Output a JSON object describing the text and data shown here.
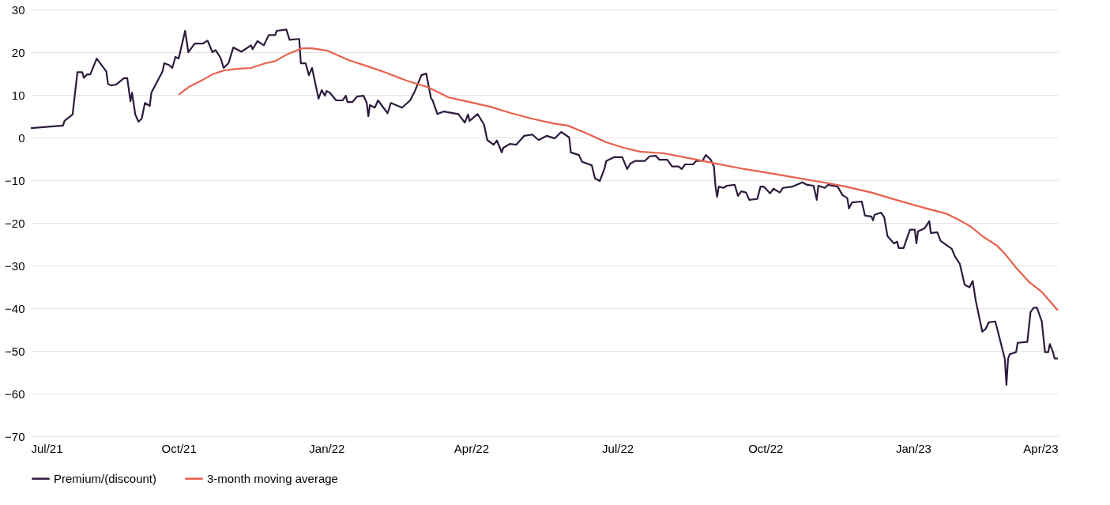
{
  "chart_data": {
    "type": "line",
    "legend": "bottom",
    "grid": "y",
    "line_style": "solid",
    "marker": "none",
    "xlim": [
      "2021-07-01",
      "2023-04-01"
    ],
    "xticks": [
      {
        "value": "2021-07-01",
        "label": "Jul/21"
      },
      {
        "value": "2021-10-01",
        "label": "Oct/21"
      },
      {
        "value": "2022-01-01",
        "label": "Jan/22"
      },
      {
        "value": "2022-04-01",
        "label": "Apr/22"
      },
      {
        "value": "2022-07-01",
        "label": "Jul/22"
      },
      {
        "value": "2022-10-01",
        "label": "Oct/22"
      },
      {
        "value": "2023-01-01",
        "label": "Jan/23"
      },
      {
        "value": "2023-04-01",
        "label": "Apr/23"
      }
    ],
    "ylim": [
      -70,
      30
    ],
    "yticks": [
      -70,
      -60,
      -50,
      -40,
      -30,
      -20,
      -10,
      0,
      10,
      20,
      30
    ],
    "series": [
      {
        "name": "Premium/(discount)",
        "color": "#2d1b3d",
        "x": [
          "2021-07-01",
          "2021-07-21",
          "2021-07-22",
          "2021-07-27",
          "2021-07-30",
          "2021-08-02",
          "2021-08-03",
          "2021-08-05",
          "2021-08-07",
          "2021-08-11",
          "2021-08-17",
          "2021-08-18",
          "2021-08-20",
          "2021-08-23",
          "2021-08-28",
          "2021-08-30",
          "2021-09-01",
          "2021-09-02",
          "2021-09-04",
          "2021-09-06",
          "2021-09-08",
          "2021-09-10",
          "2021-09-13",
          "2021-09-14",
          "2021-09-21",
          "2021-09-22",
          "2021-09-25",
          "2021-09-27",
          "2021-09-29",
          "2021-10-01",
          "2021-10-05",
          "2021-10-07",
          "2021-10-11",
          "2021-10-16",
          "2021-10-19",
          "2021-10-22",
          "2021-10-24",
          "2021-10-27",
          "2021-10-29",
          "2021-11-01",
          "2021-11-04",
          "2021-11-09",
          "2021-11-15",
          "2021-11-16",
          "2021-11-19",
          "2021-11-23",
          "2021-11-26",
          "2021-11-30",
          "2021-12-01",
          "2021-12-07",
          "2021-12-09",
          "2021-12-15",
          "2021-12-16",
          "2021-12-19",
          "2021-12-21",
          "2021-12-23",
          "2021-12-27",
          "2021-12-29",
          "2021-12-31",
          "2022-01-01",
          "2022-01-03",
          "2022-01-07",
          "2022-01-11",
          "2022-01-13",
          "2022-01-14",
          "2022-01-17",
          "2022-01-20",
          "2022-01-24",
          "2022-01-26",
          "2022-01-27",
          "2022-01-28",
          "2022-01-31",
          "2022-02-02",
          "2022-02-08",
          "2022-02-10",
          "2022-02-17",
          "2022-02-22",
          "2022-02-25",
          "2022-03-01",
          "2022-03-04",
          "2022-03-07",
          "2022-03-08",
          "2022-03-11",
          "2022-03-15",
          "2022-03-24",
          "2022-03-28",
          "2022-03-30",
          "2022-03-31",
          "2022-04-05",
          "2022-04-09",
          "2022-04-11",
          "2022-04-15",
          "2022-04-17",
          "2022-04-20",
          "2022-04-21",
          "2022-04-25",
          "2022-04-29",
          "2022-05-04",
          "2022-05-09",
          "2022-05-13",
          "2022-05-18",
          "2022-05-23",
          "2022-05-27",
          "2022-06-01",
          "2022-06-02",
          "2022-06-07",
          "2022-06-09",
          "2022-06-15",
          "2022-06-17",
          "2022-06-20",
          "2022-06-23",
          "2022-06-24",
          "2022-06-29",
          "2022-07-04",
          "2022-07-07",
          "2022-07-09",
          "2022-07-12",
          "2022-07-18",
          "2022-07-21",
          "2022-07-25",
          "2022-07-27",
          "2022-08-01",
          "2022-08-04",
          "2022-08-08",
          "2022-08-10",
          "2022-08-12",
          "2022-08-17",
          "2022-08-19",
          "2022-08-23",
          "2022-08-25",
          "2022-08-28",
          "2022-08-30",
          "2022-08-31",
          "2022-09-01",
          "2022-09-02",
          "2022-09-05",
          "2022-09-07",
          "2022-09-12",
          "2022-09-14",
          "2022-09-16",
          "2022-09-19",
          "2022-09-21",
          "2022-09-26",
          "2022-09-28",
          "2022-09-30",
          "2022-10-04",
          "2022-10-06",
          "2022-10-10",
          "2022-10-12",
          "2022-10-18",
          "2022-10-24",
          "2022-10-27",
          "2022-10-31",
          "2022-11-02",
          "2022-11-03",
          "2022-11-07",
          "2022-11-09",
          "2022-11-15",
          "2022-11-18",
          "2022-11-21",
          "2022-11-22",
          "2022-11-24",
          "2022-11-30",
          "2022-12-02",
          "2022-12-06",
          "2022-12-07",
          "2022-12-08",
          "2022-12-12",
          "2022-12-14",
          "2022-12-16",
          "2022-12-20",
          "2022-12-22",
          "2022-12-23",
          "2022-12-26",
          "2022-12-30",
          "2023-01-02",
          "2023-01-03",
          "2023-01-04",
          "2023-01-08",
          "2023-01-11",
          "2023-01-12",
          "2023-01-16",
          "2023-01-18",
          "2023-01-25",
          "2023-01-27",
          "2023-01-30",
          "2023-02-02",
          "2023-02-05",
          "2023-02-07",
          "2023-02-09",
          "2023-02-13",
          "2023-02-15",
          "2023-02-17",
          "2023-02-21",
          "2023-02-22",
          "2023-02-27",
          "2023-02-28",
          "2023-03-01",
          "2023-03-02",
          "2023-03-06",
          "2023-03-07",
          "2023-03-13",
          "2023-03-15",
          "2023-03-17",
          "2023-03-19",
          "2023-03-22",
          "2023-03-24",
          "2023-03-26",
          "2023-03-27",
          "2023-03-29",
          "2023-03-30",
          "2023-04-01"
        ],
        "values": [
          2.2,
          2.8,
          3.9,
          5.4,
          15.3,
          15.3,
          14.0,
          14.8,
          14.8,
          18.5,
          15.5,
          12.6,
          12.2,
          12.4,
          13.9,
          13.9,
          8.5,
          10.5,
          5.4,
          3.7,
          4.4,
          8.1,
          7.4,
          10.5,
          15.5,
          17.4,
          17.0,
          16.3,
          18.9,
          18.5,
          25.0,
          20.0,
          22.0,
          22.0,
          22.7,
          20.0,
          20.5,
          18.7,
          16.3,
          17.4,
          21.1,
          20.1,
          21.6,
          20.7,
          22.6,
          21.6,
          24.0,
          24.0,
          25.0,
          25.3,
          22.9,
          23.1,
          17.4,
          17.4,
          14.6,
          16.3,
          9.1,
          11.1,
          9.8,
          10.9,
          10.5,
          8.7,
          8.7,
          9.8,
          8.3,
          8.3,
          9.6,
          9.8,
          8.1,
          5.0,
          7.6,
          7.0,
          8.7,
          5.7,
          8.1,
          7.0,
          8.7,
          10.9,
          14.6,
          15.0,
          9.2,
          8.7,
          5.5,
          6.1,
          5.5,
          3.5,
          5.4,
          3.9,
          5.5,
          3.0,
          -0.6,
          -1.7,
          -0.7,
          -3.5,
          -2.4,
          -1.5,
          -1.7,
          0.4,
          0.7,
          -0.6,
          0.4,
          -0.2,
          1.3,
          0.0,
          -3.5,
          -4.1,
          -5.7,
          -6.5,
          -9.6,
          -10.2,
          -7.2,
          -5.5,
          -4.6,
          -4.6,
          -7.4,
          -6.1,
          -5.5,
          -5.5,
          -4.4,
          -4.3,
          -5.2,
          -5.2,
          -6.8,
          -6.8,
          -7.4,
          -6.3,
          -6.3,
          -5.5,
          -5.4,
          -4.1,
          -5.2,
          -6.8,
          -11.5,
          -13.9,
          -11.5,
          -11.8,
          -11.3,
          -11.1,
          -13.7,
          -12.6,
          -12.9,
          -14.6,
          -14.4,
          -11.5,
          -11.5,
          -13.1,
          -12.0,
          -12.9,
          -11.8,
          -11.5,
          -10.5,
          -11.1,
          -11.3,
          -14.6,
          -11.3,
          -11.8,
          -11.1,
          -11.5,
          -13.5,
          -14.2,
          -16.6,
          -15.2,
          -15.0,
          -18.3,
          -18.5,
          -19.4,
          -18.1,
          -17.6,
          -18.7,
          -23.1,
          -24.8,
          -24.4,
          -25.9,
          -25.9,
          -21.6,
          -21.6,
          -24.8,
          -22.0,
          -21.3,
          -19.6,
          -22.4,
          -22.2,
          -24.2,
          -26.1,
          -27.9,
          -29.6,
          -34.5,
          -35.1,
          -33.6,
          -38.4,
          -45.5,
          -44.9,
          -43.3,
          -43.1,
          -44.4,
          -51.9,
          -58.0,
          -51.9,
          -50.8,
          -50.3,
          -48.1,
          -47.9,
          -40.9,
          -39.9,
          -39.9,
          -43.1,
          -50.3,
          -50.3,
          -48.4,
          -50.3,
          -51.8,
          -51.8
        ]
      },
      {
        "name": "3-month moving average",
        "color": "#e8604c",
        "x": [
          "2021-10-01",
          "2021-10-04",
          "2021-10-08",
          "2021-10-16",
          "2021-10-22",
          "2021-10-29",
          "2021-11-06",
          "2021-11-15",
          "2021-11-24",
          "2021-11-30",
          "2021-12-08",
          "2021-12-17",
          "2021-12-23",
          "2022-01-02",
          "2022-01-15",
          "2022-01-28",
          "2022-02-07",
          "2022-02-20",
          "2022-03-05",
          "2022-03-18",
          "2022-03-31",
          "2022-04-13",
          "2022-04-26",
          "2022-05-09",
          "2022-05-22",
          "2022-05-31",
          "2022-06-11",
          "2022-06-24",
          "2022-07-05",
          "2022-07-15",
          "2022-07-30",
          "2022-08-14",
          "2022-08-31",
          "2022-09-18",
          "2022-10-06",
          "2022-10-23",
          "2022-11-09",
          "2022-11-20",
          "2022-12-06",
          "2022-12-23",
          "2023-01-09",
          "2023-01-22",
          "2023-01-29",
          "2023-02-06",
          "2023-02-13",
          "2023-02-22",
          "2023-02-27",
          "2023-03-06",
          "2023-03-14",
          "2023-03-22",
          "2023-04-01"
        ],
        "values": [
          10.0,
          10.9,
          12.0,
          13.5,
          14.8,
          15.7,
          16.1,
          16.3,
          17.4,
          17.9,
          19.6,
          20.9,
          20.9,
          20.3,
          18.1,
          16.5,
          15.2,
          13.3,
          11.8,
          9.4,
          8.3,
          7.2,
          5.7,
          4.4,
          3.3,
          2.8,
          1.1,
          -1.1,
          -2.4,
          -3.3,
          -3.7,
          -4.8,
          -6.1,
          -7.4,
          -8.5,
          -9.6,
          -10.7,
          -11.5,
          -12.9,
          -14.8,
          -16.6,
          -17.9,
          -19.2,
          -20.9,
          -23.1,
          -25.3,
          -27.2,
          -30.5,
          -33.8,
          -36.2,
          -40.5
        ]
      }
    ]
  }
}
